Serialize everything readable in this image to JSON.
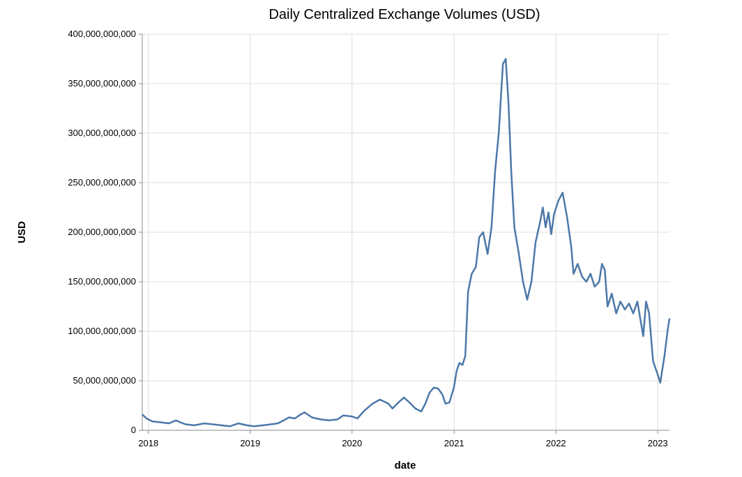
{
  "chart_data": {
    "type": "line",
    "title": "Daily Centralized Exchange Volumes (USD)",
    "xlabel": "date",
    "ylabel": "USD",
    "x_ticks": [
      "2018",
      "2019",
      "2020",
      "2021",
      "2022",
      "2023"
    ],
    "y_ticks": [
      "0",
      "50,000,000,000",
      "100,000,000,000",
      "150,000,000,000",
      "200,000,000,000",
      "250,000,000,000",
      "300,000,000,000",
      "350,000,000,000",
      "400,000,000,000"
    ],
    "ylim": [
      0,
      400000000000
    ],
    "xlim": [
      "2017-12-10",
      "2023-02-12"
    ],
    "grid": true,
    "line_color": "#4c78a8",
    "series": [
      {
        "values_unit": "billions USD",
        "points": [
          [
            "2017-12-10",
            16
          ],
          [
            "2017-12-25",
            12
          ],
          [
            "2018-01-15",
            9
          ],
          [
            "2018-02-15",
            8
          ],
          [
            "2018-03-15",
            7
          ],
          [
            "2018-04-10",
            10
          ],
          [
            "2018-04-25",
            8
          ],
          [
            "2018-05-15",
            6
          ],
          [
            "2018-06-15",
            5
          ],
          [
            "2018-07-20",
            7
          ],
          [
            "2018-08-20",
            6
          ],
          [
            "2018-09-20",
            5
          ],
          [
            "2018-10-20",
            4
          ],
          [
            "2018-11-20",
            7
          ],
          [
            "2018-12-20",
            5
          ],
          [
            "2019-01-15",
            4
          ],
          [
            "2019-02-15",
            5
          ],
          [
            "2019-03-15",
            6
          ],
          [
            "2019-04-10",
            7
          ],
          [
            "2019-05-01",
            10
          ],
          [
            "2019-05-20",
            13
          ],
          [
            "2019-06-10",
            12
          ],
          [
            "2019-07-01",
            16
          ],
          [
            "2019-07-15",
            18
          ],
          [
            "2019-08-10",
            13
          ],
          [
            "2019-09-10",
            11
          ],
          [
            "2019-10-10",
            10
          ],
          [
            "2019-11-10",
            11
          ],
          [
            "2019-12-01",
            15
          ],
          [
            "2019-12-31",
            14
          ],
          [
            "2020-01-20",
            12
          ],
          [
            "2020-02-15",
            20
          ],
          [
            "2020-03-15",
            27
          ],
          [
            "2020-04-10",
            31
          ],
          [
            "2020-05-10",
            27
          ],
          [
            "2020-05-25",
            22
          ],
          [
            "2020-06-15",
            28
          ],
          [
            "2020-07-05",
            33
          ],
          [
            "2020-07-25",
            28
          ],
          [
            "2020-08-15",
            22
          ],
          [
            "2020-09-05",
            19
          ],
          [
            "2020-09-20",
            27
          ],
          [
            "2020-10-05",
            38
          ],
          [
            "2020-10-20",
            43
          ],
          [
            "2020-11-05",
            42
          ],
          [
            "2020-11-20",
            36
          ],
          [
            "2020-12-01",
            27
          ],
          [
            "2020-12-15",
            28
          ],
          [
            "2020-12-31",
            43
          ],
          [
            "2021-01-10",
            60
          ],
          [
            "2021-01-20",
            68
          ],
          [
            "2021-01-31",
            66
          ],
          [
            "2021-02-10",
            75
          ],
          [
            "2021-02-20",
            140
          ],
          [
            "2021-03-05",
            158
          ],
          [
            "2021-03-20",
            165
          ],
          [
            "2021-04-01",
            195
          ],
          [
            "2021-04-15",
            200
          ],
          [
            "2021-05-01",
            178
          ],
          [
            "2021-05-15",
            205
          ],
          [
            "2021-05-28",
            262
          ],
          [
            "2021-06-10",
            300
          ],
          [
            "2021-06-25",
            370
          ],
          [
            "2021-07-05",
            375
          ],
          [
            "2021-07-15",
            330
          ],
          [
            "2021-07-25",
            260
          ],
          [
            "2021-08-05",
            205
          ],
          [
            "2021-08-20",
            180
          ],
          [
            "2021-09-05",
            150
          ],
          [
            "2021-09-20",
            132
          ],
          [
            "2021-10-05",
            150
          ],
          [
            "2021-10-20",
            190
          ],
          [
            "2021-11-05",
            210
          ],
          [
            "2021-11-15",
            225
          ],
          [
            "2021-11-25",
            205
          ],
          [
            "2021-12-05",
            220
          ],
          [
            "2021-12-15",
            198
          ],
          [
            "2021-12-25",
            218
          ],
          [
            "2022-01-10",
            232
          ],
          [
            "2022-01-25",
            240
          ],
          [
            "2022-02-10",
            215
          ],
          [
            "2022-02-25",
            185
          ],
          [
            "2022-03-05",
            158
          ],
          [
            "2022-03-20",
            168
          ],
          [
            "2022-04-05",
            155
          ],
          [
            "2022-04-20",
            150
          ],
          [
            "2022-05-05",
            158
          ],
          [
            "2022-05-20",
            145
          ],
          [
            "2022-06-05",
            150
          ],
          [
            "2022-06-15",
            168
          ],
          [
            "2022-06-25",
            162
          ],
          [
            "2022-07-05",
            125
          ],
          [
            "2022-07-20",
            138
          ],
          [
            "2022-08-05",
            118
          ],
          [
            "2022-08-20",
            130
          ],
          [
            "2022-09-05",
            122
          ],
          [
            "2022-09-20",
            128
          ],
          [
            "2022-10-05",
            118
          ],
          [
            "2022-10-20",
            130
          ],
          [
            "2022-11-01",
            110
          ],
          [
            "2022-11-10",
            95
          ],
          [
            "2022-11-20",
            130
          ],
          [
            "2022-12-01",
            118
          ],
          [
            "2022-12-15",
            70
          ],
          [
            "2022-12-31",
            57
          ],
          [
            "2023-01-10",
            48
          ],
          [
            "2023-01-25",
            75
          ],
          [
            "2023-02-05",
            100
          ],
          [
            "2023-02-12",
            113
          ]
        ]
      }
    ]
  }
}
